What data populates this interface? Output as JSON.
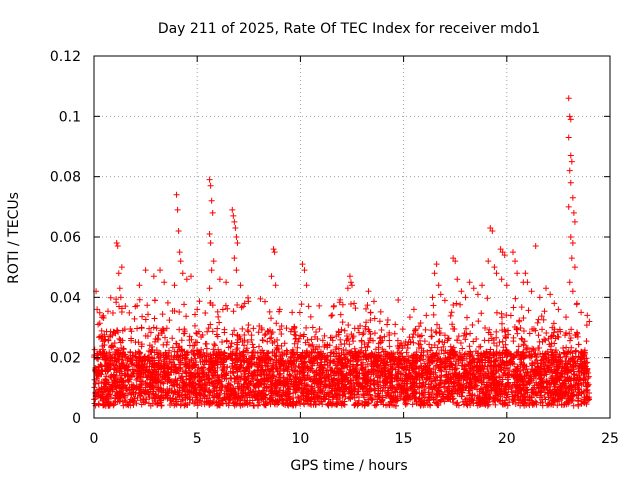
{
  "chart_data": {
    "type": "scatter",
    "title": "Day 211 of 2025, Rate Of TEC Index for receiver mdo1",
    "xlabel": "GPS time / hours",
    "ylabel": "ROTI / TECUs",
    "xlim": [
      0,
      25
    ],
    "ylim": [
      0,
      0.12
    ],
    "x_ticks": [
      0,
      5,
      10,
      15,
      20,
      25
    ],
    "x_tick_labels": [
      "0",
      "5",
      "10",
      "15",
      "20",
      "25"
    ],
    "y_ticks": [
      0,
      0.02,
      0.04,
      0.06,
      0.08,
      0.1,
      0.12
    ],
    "y_tick_labels": [
      "0",
      "0.02",
      "0.04",
      "0.06",
      "0.08",
      "0.1",
      "0.12"
    ],
    "grid": true,
    "marker": "+",
    "color": "#ff0000",
    "series": [
      {
        "name": "ROTI",
        "note": "dense cloud of points, roughly 0.003-0.03 TECU/s throughout 0-24 h",
        "points": [
          [
            0.1,
            0.042
          ],
          [
            0.15,
            0.036
          ],
          [
            0.2,
            0.031
          ],
          [
            0.3,
            0.027
          ],
          [
            1.1,
            0.058
          ],
          [
            1.15,
            0.057
          ],
          [
            1.2,
            0.048
          ],
          [
            1.25,
            0.043
          ],
          [
            1.3,
            0.04
          ],
          [
            1.35,
            0.05
          ],
          [
            2.2,
            0.044
          ],
          [
            2.5,
            0.049
          ],
          [
            2.9,
            0.047
          ],
          [
            3.2,
            0.049
          ],
          [
            3.4,
            0.045
          ],
          [
            3.9,
            0.044
          ],
          [
            4.0,
            0.074
          ],
          [
            4.05,
            0.069
          ],
          [
            4.1,
            0.062
          ],
          [
            4.15,
            0.055
          ],
          [
            4.2,
            0.052
          ],
          [
            4.3,
            0.048
          ],
          [
            4.5,
            0.046
          ],
          [
            4.7,
            0.047
          ],
          [
            5.0,
            0.036
          ],
          [
            5.6,
            0.079
          ],
          [
            5.65,
            0.077
          ],
          [
            5.7,
            0.072
          ],
          [
            5.75,
            0.068
          ],
          [
            5.6,
            0.061
          ],
          [
            5.65,
            0.058
          ],
          [
            5.8,
            0.052
          ],
          [
            5.7,
            0.049
          ],
          [
            5.6,
            0.043
          ],
          [
            6.1,
            0.046
          ],
          [
            6.4,
            0.045
          ],
          [
            6.7,
            0.069
          ],
          [
            6.75,
            0.067
          ],
          [
            6.8,
            0.065
          ],
          [
            6.85,
            0.063
          ],
          [
            6.9,
            0.06
          ],
          [
            6.95,
            0.058
          ],
          [
            6.8,
            0.053
          ],
          [
            6.9,
            0.049
          ],
          [
            7.1,
            0.044
          ],
          [
            7.3,
            0.038
          ],
          [
            8.7,
            0.056
          ],
          [
            8.75,
            0.055
          ],
          [
            8.6,
            0.047
          ],
          [
            8.8,
            0.044
          ],
          [
            9.0,
            0.036
          ],
          [
            9.6,
            0.035
          ],
          [
            10.1,
            0.051
          ],
          [
            10.2,
            0.049
          ],
          [
            10.3,
            0.044
          ],
          [
            10.4,
            0.037
          ],
          [
            10.6,
            0.03
          ],
          [
            12.4,
            0.047
          ],
          [
            12.45,
            0.045
          ],
          [
            12.5,
            0.044
          ],
          [
            12.3,
            0.043
          ],
          [
            12.6,
            0.038
          ],
          [
            13.3,
            0.042
          ],
          [
            13.4,
            0.035
          ],
          [
            13.6,
            0.033
          ],
          [
            14.2,
            0.031
          ],
          [
            15.5,
            0.036
          ],
          [
            16.1,
            0.034
          ],
          [
            16.4,
            0.04
          ],
          [
            16.5,
            0.048
          ],
          [
            16.6,
            0.051
          ],
          [
            16.7,
            0.044
          ],
          [
            16.8,
            0.041
          ],
          [
            17.0,
            0.039
          ],
          [
            17.4,
            0.053
          ],
          [
            17.5,
            0.052
          ],
          [
            17.6,
            0.046
          ],
          [
            17.8,
            0.042
          ],
          [
            18.0,
            0.04
          ],
          [
            18.2,
            0.045
          ],
          [
            18.4,
            0.043
          ],
          [
            18.6,
            0.041
          ],
          [
            18.8,
            0.044
          ],
          [
            19.2,
            0.063
          ],
          [
            19.3,
            0.062
          ],
          [
            19.1,
            0.052
          ],
          [
            19.4,
            0.05
          ],
          [
            19.5,
            0.048
          ],
          [
            19.7,
            0.056
          ],
          [
            19.8,
            0.055
          ],
          [
            19.9,
            0.054
          ],
          [
            19.75,
            0.046
          ],
          [
            20.0,
            0.044
          ],
          [
            20.3,
            0.055
          ],
          [
            20.4,
            0.052
          ],
          [
            20.5,
            0.048
          ],
          [
            20.8,
            0.045
          ],
          [
            20.9,
            0.048
          ],
          [
            21.0,
            0.045
          ],
          [
            21.2,
            0.042
          ],
          [
            21.4,
            0.057
          ],
          [
            21.6,
            0.04
          ],
          [
            21.9,
            0.043
          ],
          [
            22.1,
            0.041
          ],
          [
            22.3,
            0.038
          ],
          [
            22.5,
            0.036
          ],
          [
            23.0,
            0.106
          ],
          [
            23.05,
            0.1
          ],
          [
            23.1,
            0.099
          ],
          [
            23.0,
            0.093
          ],
          [
            23.1,
            0.087
          ],
          [
            23.15,
            0.085
          ],
          [
            23.05,
            0.082
          ],
          [
            23.1,
            0.078
          ],
          [
            23.2,
            0.073
          ],
          [
            23.0,
            0.07
          ],
          [
            23.25,
            0.068
          ],
          [
            23.3,
            0.065
          ],
          [
            23.1,
            0.06
          ],
          [
            23.2,
            0.058
          ],
          [
            23.15,
            0.053
          ],
          [
            23.3,
            0.05
          ],
          [
            23.05,
            0.045
          ],
          [
            23.2,
            0.042
          ],
          [
            23.4,
            0.038
          ],
          [
            23.6,
            0.035
          ],
          [
            23.9,
            0.034
          ],
          [
            24.0,
            0.032
          ]
        ]
      }
    ]
  }
}
